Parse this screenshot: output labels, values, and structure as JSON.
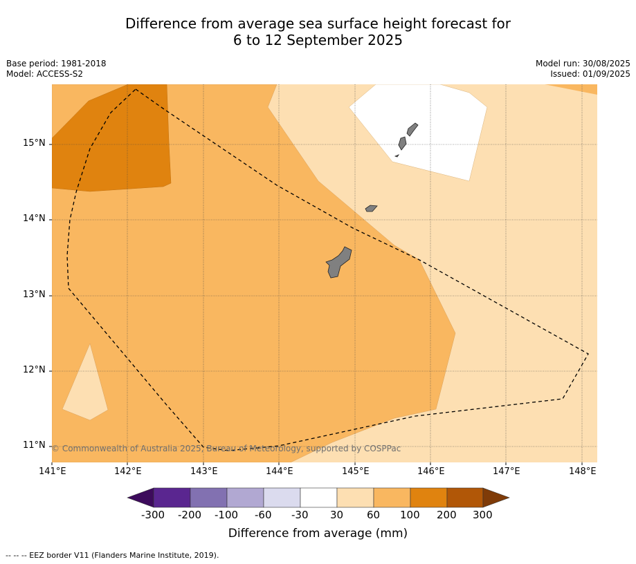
{
  "title": {
    "line1": "Difference from average sea surface height forecast for",
    "line2": "6 to 12 September 2025"
  },
  "meta": {
    "base_period": "Base period: 1981-2018",
    "model": "Model: ACCESS-S2",
    "model_run": "Model run: 30/08/2025",
    "issued": "Issued: 01/09/2025"
  },
  "map": {
    "lon_range": [
      141,
      148.2
    ],
    "lat_range": [
      10.8,
      15.8
    ],
    "x_ticks": [
      "141°E",
      "142°E",
      "143°E",
      "144°E",
      "145°E",
      "146°E",
      "147°E",
      "148°E"
    ],
    "y_ticks": [
      "15°N",
      "14°N",
      "13°N",
      "12°N",
      "11°N"
    ],
    "credit": "© Commonwealth of Australia 2025, Bureau of Meteorology, supported by COSPPac",
    "land_color": "#808080",
    "eez_style": "dashed"
  },
  "colorbar": {
    "labels": [
      "-300",
      "-200",
      "-100",
      "-60",
      "-30",
      "30",
      "60",
      "100",
      "200",
      "300"
    ],
    "colors": [
      "#3d0b5c",
      "#5a2690",
      "#8271b1",
      "#b1a8d2",
      "#dbdbee",
      "#ffffff",
      "#fddfb2",
      "#f9b760",
      "#e0830f",
      "#b15707",
      "#7f3b08"
    ],
    "title": "Difference from average (mm)"
  },
  "footer": "--  --  -- EEZ border V11 (Flanders Marine Institute, 2019)."
}
